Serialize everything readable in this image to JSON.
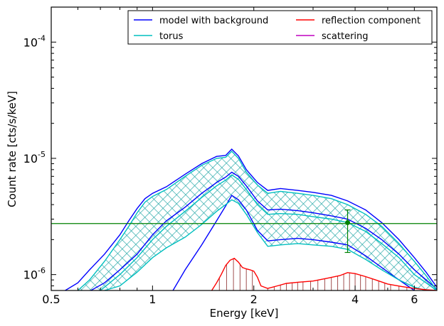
{
  "chart_data": {
    "type": "line",
    "xlabel": "Energy [keV]",
    "ylabel": "Count rate [cts/s/keV]",
    "x_scale": "log",
    "y_scale": "log",
    "xlim": [
      0.5,
      7.0
    ],
    "ylim": [
      7.3e-07,
      0.0002
    ],
    "x_ticks": [
      {
        "value": 0.5,
        "label": "0.5"
      },
      {
        "value": 1,
        "label": "1"
      },
      {
        "value": 2,
        "label": "2"
      },
      {
        "value": 4,
        "label": "4"
      },
      {
        "value": 6,
        "label": "6"
      }
    ],
    "y_ticks": [
      {
        "value": 1e-06,
        "base": "10",
        "exp": "-6"
      },
      {
        "value": 1e-05,
        "base": "10",
        "exp": "-5"
      },
      {
        "value": 0.0001,
        "base": "10",
        "exp": "-4"
      }
    ],
    "grid": false,
    "legend": {
      "placement": "top-right",
      "columns": 2,
      "entries": [
        {
          "name": "model with background",
          "color": "#0000ff"
        },
        {
          "name": "reflection component",
          "color": "#ff0000"
        },
        {
          "name": "torus",
          "color": "#00bfbf"
        },
        {
          "name": "scattering",
          "color": "#bf00bf"
        }
      ]
    },
    "series": [
      {
        "name": "model with background",
        "color": "#0000ff",
        "role": "median",
        "x": [
          0.65,
          0.72,
          0.8,
          0.9,
          1.0,
          1.1,
          1.25,
          1.4,
          1.55,
          1.65,
          1.72,
          1.8,
          1.9,
          2.05,
          2.2,
          2.4,
          2.7,
          3.0,
          3.4,
          3.8,
          4.3,
          4.8,
          5.4,
          6.0,
          7.0
        ],
        "y": [
          7.2e-07,
          8.5e-07,
          1.1e-06,
          1.5e-06,
          2.2e-06,
          2.9e-06,
          3.8e-06,
          5e-06,
          6.2e-06,
          6.9e-06,
          7.6e-06,
          7e-06,
          5.8e-06,
          4.3e-06,
          3.6e-06,
          3.65e-06,
          3.55e-06,
          3.4e-06,
          3.2e-06,
          3e-06,
          2.5e-06,
          2e-06,
          1.5e-06,
          1.1e-06,
          7.5e-07
        ]
      },
      {
        "name": "model with background",
        "color": "#0000ff",
        "role": "upper",
        "x": [
          0.55,
          0.6,
          0.65,
          0.72,
          0.8,
          0.85,
          0.9,
          0.95,
          1.0,
          1.1,
          1.25,
          1.4,
          1.55,
          1.65,
          1.72,
          1.8,
          1.9,
          2.05,
          2.2,
          2.4,
          2.7,
          3.0,
          3.4,
          3.8,
          4.3,
          4.8,
          5.4,
          6.0,
          6.5,
          7.0
        ],
        "y": [
          7.3e-07,
          8.5e-07,
          1.1e-06,
          1.5e-06,
          2.2e-06,
          2.9e-06,
          3.7e-06,
          4.5e-06,
          5e-06,
          5.7e-06,
          7.3e-06,
          9e-06,
          1.04e-05,
          1.06e-05,
          1.2e-05,
          1.05e-05,
          8e-06,
          6.2e-06,
          5.3e-06,
          5.5e-06,
          5.3e-06,
          5.1e-06,
          4.8e-06,
          4.3e-06,
          3.6e-06,
          2.8e-06,
          2e-06,
          1.4e-06,
          1.05e-06,
          7.8e-07
        ]
      },
      {
        "name": "model with background",
        "color": "#0000ff",
        "role": "lower",
        "x": [
          1.15,
          1.25,
          1.4,
          1.55,
          1.65,
          1.72,
          1.8,
          1.9,
          2.05,
          2.2,
          2.4,
          2.7,
          3.0,
          3.4,
          3.8,
          4.3,
          4.8,
          5.4,
          6.0
        ],
        "y": [
          7.3e-07,
          1.1e-06,
          1.8e-06,
          2.9e-06,
          3.9e-06,
          4.8e-06,
          4.4e-06,
          3.6e-06,
          2.4e-06,
          1.95e-06,
          2e-06,
          2.05e-06,
          2e-06,
          1.9e-06,
          1.8e-06,
          1.45e-06,
          1.15e-06,
          9e-07,
          7.3e-07
        ]
      },
      {
        "name": "torus",
        "color": "#00bfbf",
        "role": "upper",
        "x": [
          0.6,
          0.65,
          0.72,
          0.8,
          0.85,
          0.9,
          0.95,
          1.0,
          1.1,
          1.25,
          1.4,
          1.55,
          1.65,
          1.72,
          1.8,
          1.9,
          2.05,
          2.2,
          2.4,
          2.7,
          3.0,
          3.4,
          3.8,
          4.3,
          4.8,
          5.4,
          6.0,
          6.5,
          7.0
        ],
        "y": [
          7.3e-07,
          9e-07,
          1.3e-06,
          2e-06,
          2.6e-06,
          3.4e-06,
          4.2e-06,
          4.7e-06,
          5.4e-06,
          7e-06,
          8.7e-06,
          1e-05,
          1.02e-05,
          1.15e-05,
          1e-05,
          7.6e-06,
          5.9e-06,
          5e-06,
          5.2e-06,
          5e-06,
          4.8e-06,
          4.5e-06,
          4e-06,
          3.3e-06,
          2.6e-06,
          1.85e-06,
          1.3e-06,
          9.8e-07,
          7.3e-07
        ]
      },
      {
        "name": "torus",
        "color": "#00bfbf",
        "role": "lower",
        "x": [
          0.72,
          0.8,
          0.9,
          1.0,
          1.1,
          1.25,
          1.4,
          1.55,
          1.65,
          1.72,
          1.8,
          1.9,
          2.05,
          2.2,
          2.4,
          2.7,
          3.0,
          3.4,
          3.8,
          4.3,
          4.8,
          5.4,
          6.0,
          6.5
        ],
        "y": [
          7.3e-07,
          8e-07,
          1.05e-06,
          1.4e-06,
          1.7e-06,
          2.1e-06,
          2.7e-06,
          3.5e-06,
          4e-06,
          4.4e-06,
          4.1e-06,
          3.3e-06,
          2.3e-06,
          1.75e-06,
          1.8e-06,
          1.85e-06,
          1.8e-06,
          1.75e-06,
          1.65e-06,
          1.35e-06,
          1.1e-06,
          9e-07,
          7.8e-07,
          7.3e-07
        ]
      },
      {
        "name": "torus",
        "color": "#00bfbf",
        "role": "median",
        "x": [
          0.7,
          0.8,
          0.9,
          1.0,
          1.1,
          1.25,
          1.4,
          1.55,
          1.65,
          1.72,
          1.8,
          1.9,
          2.05,
          2.2,
          2.4,
          2.7,
          3.0,
          3.4,
          3.8,
          4.3,
          4.8,
          5.4,
          6.0,
          7.0
        ],
        "y": [
          7.3e-07,
          1e-06,
          1.4e-06,
          2e-06,
          2.6e-06,
          3.5e-06,
          4.6e-06,
          5.8e-06,
          6.5e-06,
          7.2e-06,
          6.6e-06,
          5.4e-06,
          4e-06,
          3.3e-06,
          3.35e-06,
          3.3e-06,
          3.15e-06,
          3e-06,
          2.8e-06,
          2.35e-06,
          1.85e-06,
          1.4e-06,
          1e-06,
          7.3e-07
        ]
      },
      {
        "name": "reflection component",
        "color": "#ff0000",
        "role": "line",
        "x": [
          1.5,
          1.55,
          1.6,
          1.65,
          1.7,
          1.75,
          1.8,
          1.85,
          1.9,
          1.95,
          2.0,
          2.05,
          2.1,
          2.2,
          2.35,
          2.5,
          2.7,
          3.0,
          3.3,
          3.6,
          3.8,
          4.0,
          4.3,
          4.6,
          5.0,
          5.5,
          6.0,
          6.5,
          7.0
        ],
        "y": [
          7.3e-07,
          8.5e-07,
          1e-06,
          1.2e-06,
          1.33e-06,
          1.38e-06,
          1.28e-06,
          1.15e-06,
          1.12e-06,
          1.1e-06,
          1.07e-06,
          9.5e-07,
          8e-07,
          7.6e-07,
          8e-07,
          8.4e-07,
          8.6e-07,
          8.8e-07,
          9.3e-07,
          9.8e-07,
          1.04e-06,
          1.02e-06,
          9.6e-07,
          9e-07,
          8.3e-07,
          7.9e-07,
          7.6e-07,
          7.4e-07,
          7.3e-07
        ]
      }
    ],
    "reflection_stems": {
      "color": "#a05050",
      "x": [
        1.5,
        1.58,
        1.66,
        1.74,
        1.82,
        1.9,
        1.98,
        2.2,
        2.3,
        2.4,
        2.5,
        2.6,
        2.7,
        2.8,
        2.95,
        3.1,
        3.25,
        3.4,
        3.55,
        3.7,
        3.85,
        4.0,
        4.15,
        4.3,
        4.5,
        4.7,
        4.9,
        5.1,
        5.4,
        5.7
      ]
    },
    "hatched_band": {
      "lower_series": "torus lower",
      "upper_series": "torus upper",
      "pattern_color": "#2aa9a9"
    },
    "horizontal_line": {
      "y": 2.75e-06,
      "color": "#008000"
    },
    "data_point": {
      "x": 3.8,
      "y": 2.8e-06,
      "y_low": 1.55e-06,
      "y_high": 3.6e-06,
      "color": "#008000"
    }
  }
}
